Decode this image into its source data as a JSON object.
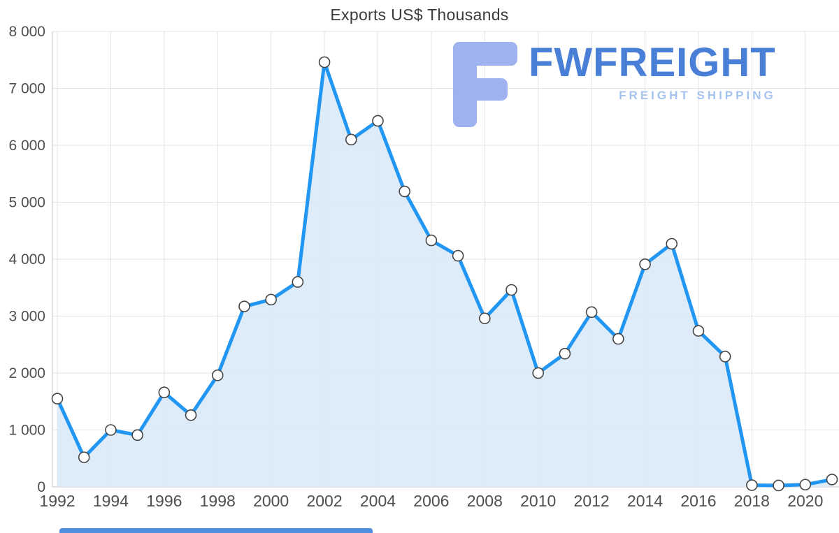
{
  "chart_data": {
    "type": "area",
    "title": "Exports US$ Thousands",
    "xlabel": "",
    "ylabel": "",
    "x": [
      1992,
      1993,
      1994,
      1995,
      1996,
      1997,
      1998,
      1999,
      2000,
      2001,
      2002,
      2003,
      2004,
      2005,
      2006,
      2007,
      2008,
      2009,
      2010,
      2011,
      2012,
      2013,
      2014,
      2015,
      2016,
      2017,
      2018,
      2019,
      2020,
      2021
    ],
    "values": [
      1550,
      520,
      1000,
      910,
      1660,
      1260,
      1960,
      3170,
      3290,
      3600,
      7460,
      6100,
      6430,
      5190,
      4330,
      4060,
      2960,
      3460,
      2000,
      2340,
      3070,
      2600,
      3910,
      4270,
      2740,
      2290,
      30,
      25,
      40,
      130
    ],
    "ylim": [
      0,
      8000
    ],
    "ytick_step": 1000,
    "xticks": [
      1992,
      1994,
      1996,
      1998,
      2000,
      2002,
      2004,
      2006,
      2008,
      2010,
      2012,
      2014,
      2016,
      2018,
      2020
    ],
    "grid": "on",
    "legend": "none",
    "colors": {
      "line": "#2196f3",
      "fill": "#daeaf8",
      "marker_fill": "#ffffff",
      "marker_stroke": "#454545",
      "grid": "#e3e3e3",
      "axis": "#c4c4c4",
      "tick_text": "#4f4f4f",
      "title_text": "#3c3c3c"
    }
  },
  "watermark": {
    "brand": "FWFREIGHT",
    "tagline": "FREIGHT SHIPPING",
    "brand_color": "#4a7fd8",
    "tagline_color": "#a6c3ef",
    "icon_color": "#9db2ee"
  },
  "scrollbar": {
    "color": "#4e90dd"
  }
}
